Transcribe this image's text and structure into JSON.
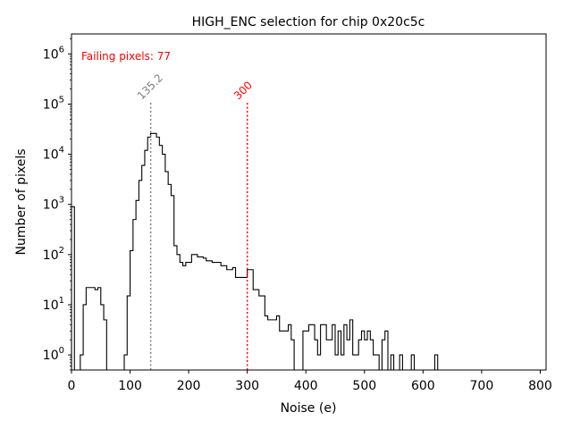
{
  "chart_data": {
    "type": "histogram",
    "title": "HIGH_ENC selection for chip 0x20c5c",
    "xlabel": "Noise (e)",
    "ylabel": "Number of pixels",
    "xlim": [
      0,
      810
    ],
    "ylim": [
      0.5,
      2500000
    ],
    "yscale": "log",
    "xticks": [
      0,
      100,
      200,
      300,
      400,
      500,
      600,
      700,
      800
    ],
    "xtick_labels": [
      "0",
      "100",
      "200",
      "300",
      "400",
      "500",
      "600",
      "700",
      "800"
    ],
    "yticks": [
      1,
      10,
      100,
      1000,
      10000,
      100000,
      1000000
    ],
    "ytick_labels": [
      "10",
      "10",
      "10",
      "10",
      "10",
      "10",
      "10"
    ],
    "ytick_exponents": [
      "0",
      "1",
      "2",
      "3",
      "4",
      "5",
      "6"
    ],
    "bin_width": 5,
    "bin_start": 0,
    "counts": [
      900,
      0,
      0,
      1,
      10,
      22,
      22,
      22,
      20,
      22,
      10,
      5,
      0,
      0,
      0,
      0,
      0,
      0,
      1,
      15,
      120,
      500,
      1200,
      3000,
      6000,
      12000,
      22000,
      26000,
      26000,
      22000,
      15000,
      10000,
      4500,
      2500,
      1500,
      150,
      100,
      70,
      60,
      70,
      70,
      100,
      100,
      90,
      90,
      85,
      75,
      75,
      70,
      70,
      70,
      60,
      60,
      50,
      50,
      55,
      35,
      35,
      35,
      35,
      50,
      50,
      20,
      20,
      15,
      15,
      6,
      5,
      5,
      5,
      6,
      3,
      3,
      3,
      4,
      2,
      0,
      0,
      0,
      3,
      3,
      4,
      4,
      2,
      1,
      4,
      4,
      2,
      2,
      4,
      1,
      3,
      1,
      4,
      2,
      5,
      1,
      1,
      2,
      3,
      2,
      3,
      2,
      1,
      1,
      0,
      2,
      3,
      0,
      1,
      0,
      0,
      1,
      0,
      0,
      0,
      1,
      0,
      0,
      0,
      0,
      0,
      0,
      0,
      1
    ],
    "edge_color": "#000000",
    "lines": [
      {
        "x": 135.2,
        "label": "135.2",
        "color": "#808080",
        "style": "dotted"
      },
      {
        "x": 300,
        "label": "300",
        "color": "#ff0000",
        "style": "dotted"
      }
    ],
    "annotation": {
      "text": "Failing pixels: 77",
      "color": "#ff0000"
    }
  }
}
